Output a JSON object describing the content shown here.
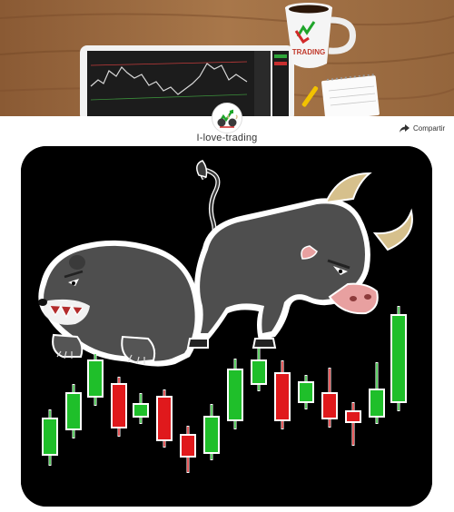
{
  "shop": {
    "name": "I-love-trading"
  },
  "share": {
    "label": "Compartir",
    "icon": "share-icon"
  },
  "banner": {
    "mug_text": "TRADING"
  },
  "colors": {
    "candle_green": "#1fbf2a",
    "candle_red": "#e0191c",
    "mat_background": "#000000"
  }
}
